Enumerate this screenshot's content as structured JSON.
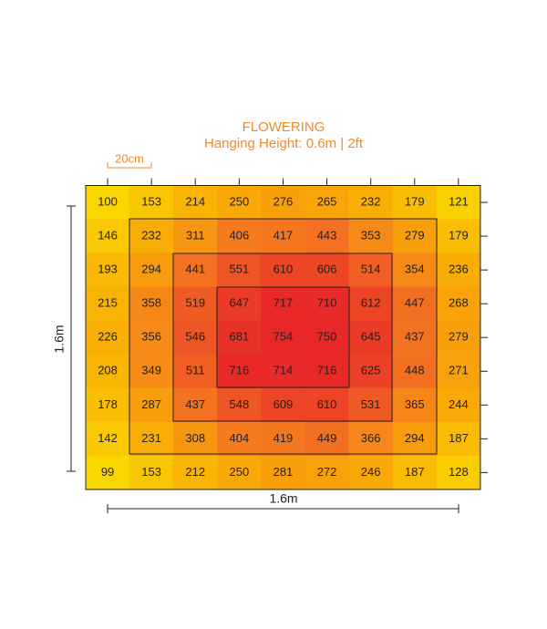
{
  "chart_data": {
    "type": "heatmap",
    "title": "FLOWERING",
    "subtitle": "Hanging Height:  0.6m | 2ft",
    "cell_label": "20cm",
    "x_label": "1.6m",
    "y_label": "1.6m",
    "values": [
      [
        100,
        153,
        214,
        250,
        276,
        265,
        232,
        179,
        121
      ],
      [
        146,
        232,
        311,
        406,
        417,
        443,
        353,
        279,
        179
      ],
      [
        193,
        294,
        441,
        551,
        610,
        606,
        514,
        354,
        236
      ],
      [
        215,
        358,
        519,
        647,
        717,
        710,
        612,
        447,
        268
      ],
      [
        226,
        356,
        546,
        681,
        754,
        750,
        645,
        437,
        279
      ],
      [
        208,
        349,
        511,
        716,
        714,
        716,
        625,
        448,
        271
      ],
      [
        178,
        287,
        437,
        548,
        609,
        610,
        531,
        365,
        244
      ],
      [
        142,
        231,
        308,
        404,
        419,
        449,
        366,
        294,
        187
      ],
      [
        99,
        153,
        212,
        250,
        281,
        272,
        246,
        187,
        128
      ]
    ]
  }
}
